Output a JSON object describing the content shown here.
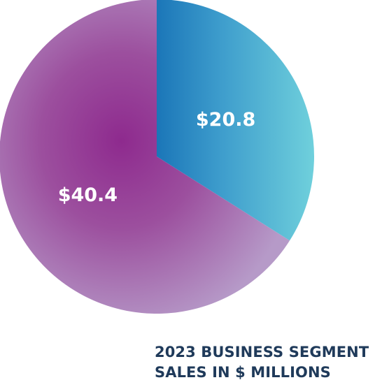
{
  "chart_data": {
    "type": "pie",
    "title_lines": [
      "2023 BUSINESS SEGMENT",
      "SALES IN $ MILLIONS"
    ],
    "slices": [
      {
        "value": 20.8,
        "label": "$20.8",
        "color_start": "#1b76b8",
        "color_end": "#6fd0dc"
      },
      {
        "value": 40.4,
        "label": "$40.4",
        "color_center": "#8e2a8e",
        "color_edge": "#b69ac8"
      }
    ],
    "start_angle_deg": 0,
    "direction": "clockwise"
  }
}
